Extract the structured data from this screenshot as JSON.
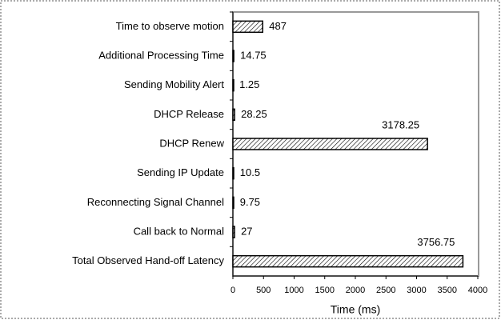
{
  "chart_data": {
    "type": "bar",
    "orientation": "horizontal",
    "categories": [
      "Time to observe motion",
      "Additional Processing Time",
      "Sending Mobility Alert",
      "DHCP Release",
      "DHCP Renew",
      "Sending IP Update",
      "Reconnecting Signal Channel",
      "Call back to Normal",
      "Total Observed Hand-off Latency"
    ],
    "values": [
      487,
      14.75,
      1.25,
      28.25,
      3178.25,
      10.5,
      9.75,
      27,
      3756.75
    ],
    "xlabel": "Time (ms)",
    "xlim": [
      0,
      4000
    ],
    "xticks": [
      0,
      500,
      1000,
      1500,
      2000,
      2500,
      3000,
      3500,
      4000
    ],
    "grid": false,
    "color": "#000000"
  }
}
